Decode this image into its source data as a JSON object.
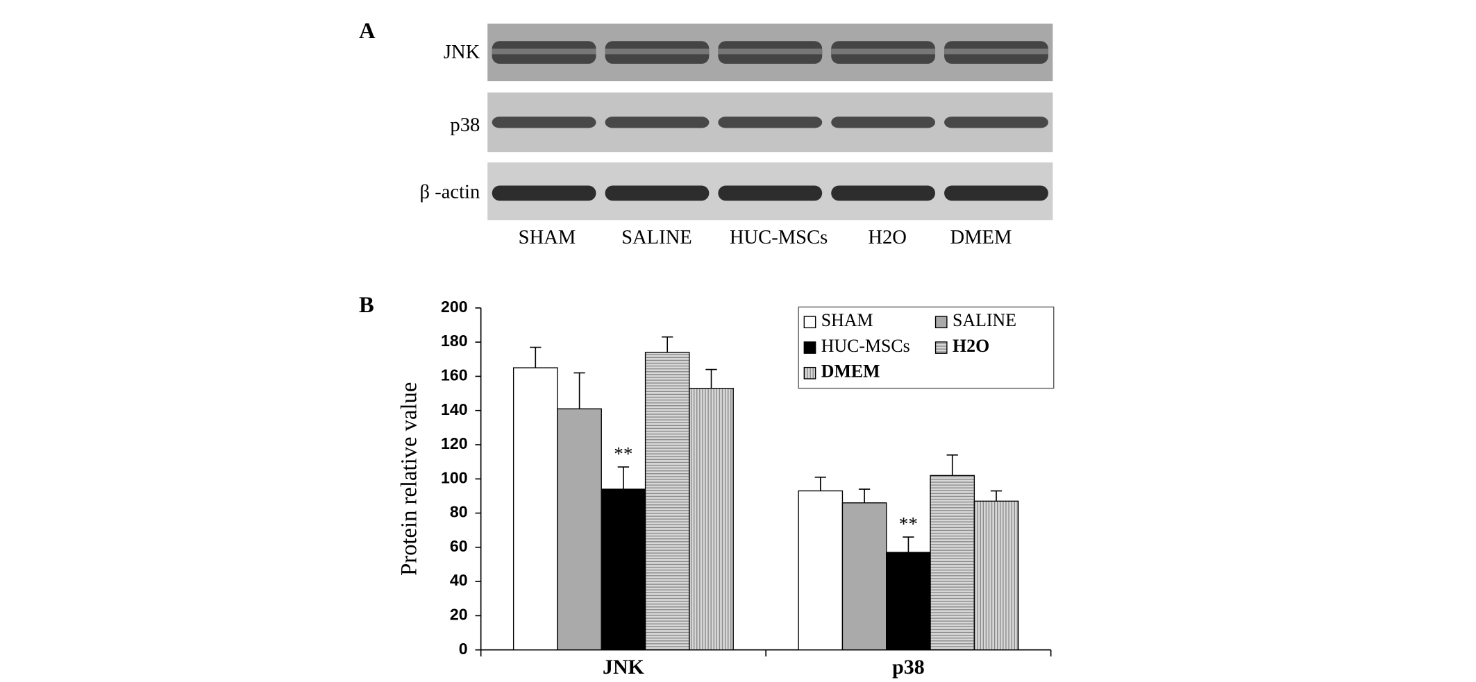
{
  "figure": {
    "panel_a_label": "A",
    "panel_b_label": "B"
  },
  "blot": {
    "rows": [
      "JNK",
      "p38",
      "β -actin"
    ],
    "lanes": [
      "SHAM",
      "SALINE",
      "HUC-MSCs",
      "H2O",
      "DMEM"
    ]
  },
  "chart_data": {
    "type": "bar",
    "y_label": "Protein relative value",
    "categories": [
      "JNK",
      "p38"
    ],
    "series": [
      {
        "name": "SHAM",
        "color": "#ffffff",
        "values": [
          165,
          93
        ],
        "errors": [
          12,
          8
        ]
      },
      {
        "name": "SALINE",
        "color": "#aaaaaa",
        "values": [
          141,
          86
        ],
        "errors": [
          21,
          8
        ]
      },
      {
        "name": "HUC-MSCs",
        "color": "#000000",
        "values": [
          94,
          57
        ],
        "errors": [
          13,
          9
        ],
        "annotations": [
          "**",
          "**"
        ]
      },
      {
        "name": "H2O",
        "color": "#b0b0b0",
        "pattern": "horizontal-lines",
        "values": [
          174,
          102
        ],
        "errors": [
          9,
          12
        ]
      },
      {
        "name": "DMEM",
        "color": "#b0b0b0",
        "pattern": "vertical-lines",
        "values": [
          153,
          87
        ],
        "errors": [
          11,
          6
        ]
      }
    ],
    "ylim": [
      0,
      200
    ],
    "yticks": [
      0,
      20,
      40,
      60,
      80,
      100,
      120,
      140,
      160,
      180,
      200
    ],
    "grid": false
  }
}
